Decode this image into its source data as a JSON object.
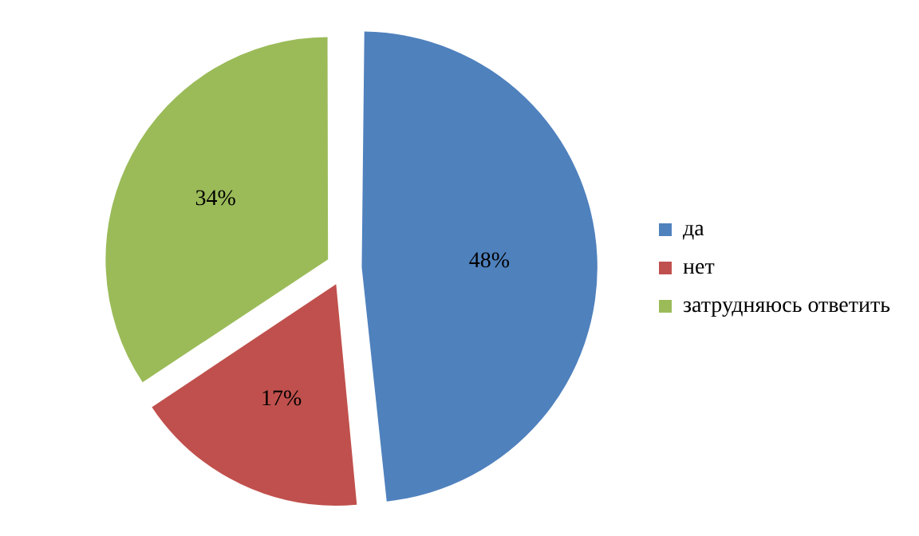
{
  "chart_data": {
    "type": "pie",
    "categories": [
      "да",
      "нет",
      "затрудняюсь ответить"
    ],
    "values": [
      48,
      17,
      34
    ],
    "colors": [
      "#4f81bd",
      "#c0504d",
      "#9bbb59"
    ],
    "value_labels": [
      "48%",
      "17%",
      "34%"
    ],
    "legend": "right"
  }
}
